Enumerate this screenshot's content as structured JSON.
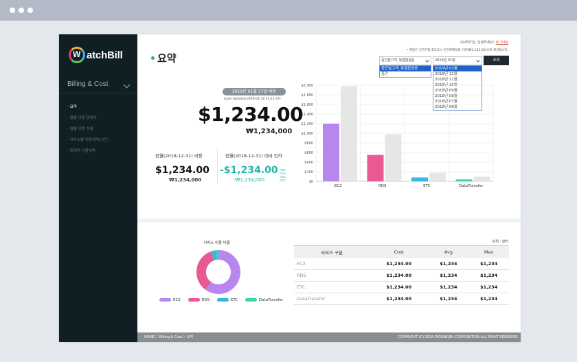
{
  "browser": {
    "dots": [
      "dot",
      "dot",
      "dot"
    ]
  },
  "sidebar": {
    "logo_text": "WatchBill",
    "menu_head": "Billing & Cost",
    "items": [
      {
        "label": "요약"
      },
      {
        "label": "월별 이용 명세서"
      },
      {
        "label": "월별 이용 상세"
      },
      {
        "label": "서비스별 이용내역(시간)"
      },
      {
        "label": "트래픽 사용내역"
      }
    ]
  },
  "header": {
    "greeting": "GUEST님, 안녕하세요!",
    "logout": "로그아웃",
    "notice": "• 환율은 신한은행 최초고시 전신환매도율 기준(₩1,125.00)으로 계산됩니다.",
    "title": "요약"
  },
  "filters": {
    "account_select": "중간발고객_복결합검증",
    "account_options": [
      "중간발고객_복결합검증",
      "중간"
    ],
    "month_select": "2019년 01월",
    "month_options": [
      "2019년 01월",
      "2018년 12월",
      "2018년 11월",
      "2018년 10월",
      "2018년 09월",
      "2018년 08월",
      "2018년 07월",
      "2018년 06월"
    ],
    "search_label": "조회"
  },
  "summary": {
    "period_pill": "2019년 01월 17일 비용",
    "last_updated": "(Last Updated 2019-01-16 23:11:47)",
    "total_usd": "$1,234.00",
    "total_krw": "₩1,234,000",
    "prev_label": "전월(2018-12-31) 비용",
    "prev_usd": "$1,234.00",
    "prev_krw": "₩1,234,000",
    "diff_label": "전월(2018-12-31) 대비 인하",
    "diff_usd": "-$1,234.00",
    "diff_krw": "-₩1,234,000"
  },
  "colors": {
    "ec2": "#b787ee",
    "rds": "#ea5a92",
    "etc": "#37b8e3",
    "datatransfer": "#3fd3a4",
    "compare": "#e6e6e6"
  },
  "chart_data": {
    "type": "bar",
    "categories": [
      "EC2",
      "RDS",
      "ETC",
      "DataTransfer"
    ],
    "series": [
      {
        "values": [
          1200,
          550,
          80,
          40
        ]
      },
      {
        "values": [
          1980,
          980,
          180,
          100
        ]
      }
    ],
    "ytick_labels": [
      "$2,000",
      "$1,800",
      "$1,600",
      "$1,400",
      "$1,200",
      "$1,000",
      "$800",
      "$600",
      "$400",
      "$200",
      "$0"
    ],
    "ylim": [
      0,
      2000
    ],
    "grid": true
  },
  "donut": {
    "title": "서비스 이용 비율",
    "segments": [
      {
        "name": "EC2",
        "value": 60
      },
      {
        "name": "RDS",
        "value": 34
      },
      {
        "name": "ETC",
        "value": 4
      },
      {
        "name": "DataTransfer",
        "value": 2
      }
    ]
  },
  "table": {
    "unit": "단위 : 달러",
    "headers": [
      "서비스 구분",
      "Cost",
      "Avg",
      "Max"
    ],
    "rows": [
      [
        "EC2",
        "$1,234.00",
        "$1,234",
        "$1,234"
      ],
      [
        "RDS",
        "$1,234.00",
        "$1,234",
        "$1,234"
      ],
      [
        "ETC",
        "$1,234.00",
        "$1,234",
        "$1,234"
      ],
      [
        "DataTransfer",
        "$1,234.00",
        "$1,234",
        "$1,234"
      ]
    ]
  },
  "footer": {
    "breadcrumb": "HOME 〉Billing & Cost 〉요약",
    "copyright": "COPYRIGHT (C) 2018 WOONGJIN CORPORATION ALL RIGHT RESERVED"
  }
}
